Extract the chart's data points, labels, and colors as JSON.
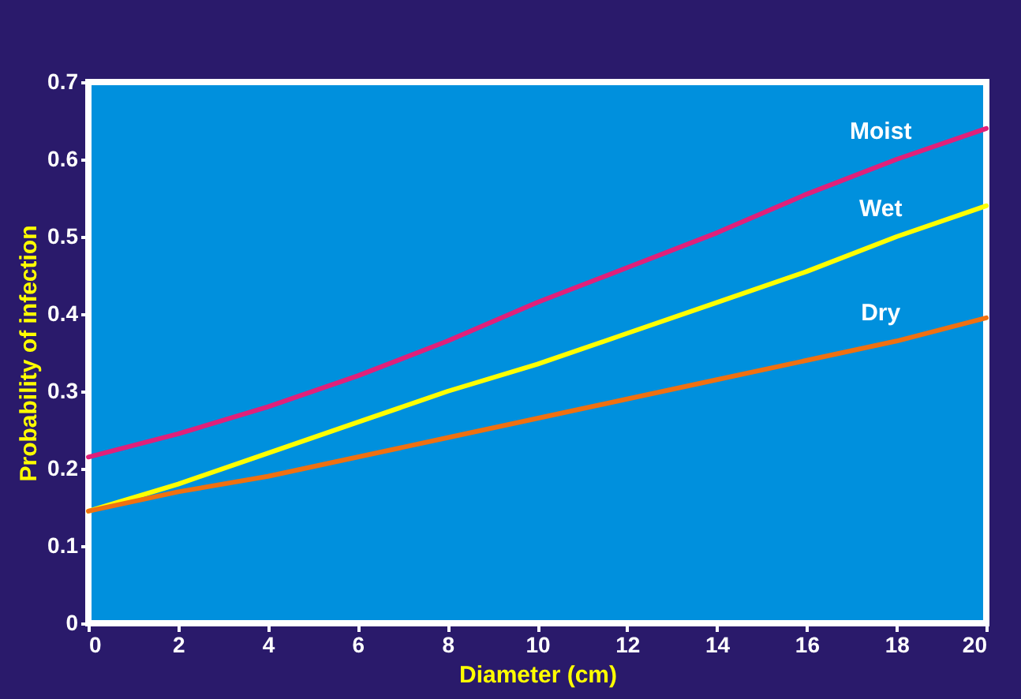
{
  "chart_data": {
    "type": "line",
    "xlabel": "Diameter (cm)",
    "ylabel": "Probability of infection",
    "x": [
      0,
      2,
      4,
      6,
      8,
      10,
      12,
      14,
      16,
      18,
      20
    ],
    "series": [
      {
        "name": "Moist",
        "color": "#e0207a",
        "values": [
          0.215,
          0.245,
          0.28,
          0.32,
          0.365,
          0.415,
          0.46,
          0.505,
          0.555,
          0.6,
          0.64
        ]
      },
      {
        "name": "Wet",
        "color": "#ffff00",
        "values": [
          0.145,
          0.18,
          0.22,
          0.26,
          0.3,
          0.335,
          0.375,
          0.415,
          0.455,
          0.5,
          0.54
        ]
      },
      {
        "name": "Dry",
        "color": "#f07010",
        "values": [
          0.145,
          0.17,
          0.19,
          0.215,
          0.24,
          0.265,
          0.29,
          0.315,
          0.34,
          0.365,
          0.395
        ]
      }
    ],
    "xlim": [
      0,
      20
    ],
    "xticks": [
      0,
      2,
      4,
      6,
      8,
      10,
      12,
      14,
      16,
      18,
      20
    ],
    "ylim": [
      0,
      0.7
    ],
    "yticks": [
      0,
      0.1,
      0.2,
      0.3,
      0.4,
      0.5,
      0.6,
      0.7
    ],
    "grid": false,
    "legend": false,
    "marker": "none",
    "line_style": "solid"
  }
}
